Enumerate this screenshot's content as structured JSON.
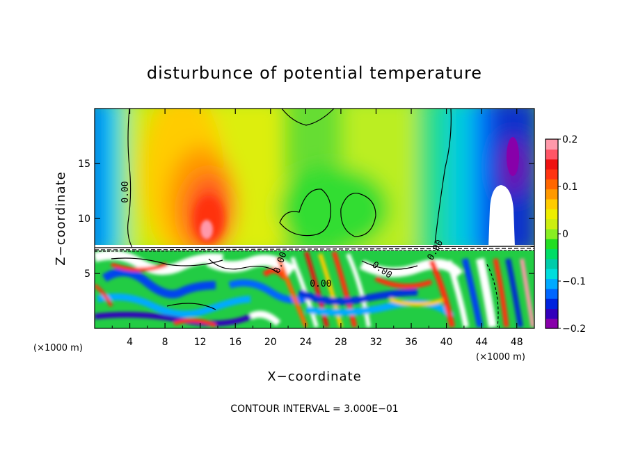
{
  "chart_data": {
    "type": "heatmap",
    "title": "disturbunce of potential temperature",
    "xlabel": "X−coordinate",
    "ylabel": "Z−coordinate",
    "x_unit_left": "(×1000 m)",
    "x_unit_right": "(×1000 m)",
    "xlim": [
      0,
      50
    ],
    "ylim": [
      0,
      20
    ],
    "x_ticks": [
      4,
      8,
      12,
      16,
      20,
      24,
      28,
      32,
      36,
      40,
      44,
      48
    ],
    "x_tick_labels": [
      "4",
      "8",
      "12",
      "16",
      "20",
      "24",
      "28",
      "32",
      "36",
      "40",
      "44",
      "48"
    ],
    "y_ticks": [
      5,
      10,
      15
    ],
    "y_tick_labels": [
      "5",
      "10",
      "15"
    ],
    "colorbar": {
      "range": [
        -0.2,
        0.2
      ],
      "ticks": [
        0.2,
        0.1,
        0,
        -0.1,
        -0.2
      ],
      "tick_labels": [
        "0.2",
        "0.1",
        "0",
        "−0.1",
        "−0.2"
      ],
      "colors": [
        "#8800aa",
        "#3300bb",
        "#0022dd",
        "#0066ff",
        "#00aaff",
        "#00dddd",
        "#00ccaa",
        "#00dd66",
        "#22dd22",
        "#88ee22",
        "#ccee11",
        "#eeee00",
        "#ffcc00",
        "#ff9900",
        "#ff6600",
        "#ff3311",
        "#ee1111",
        "#ff5566",
        "#ff99aa"
      ]
    },
    "contour_labels": [
      {
        "text": "0.00",
        "x": 3.8,
        "z": 12.4,
        "rotate": -90
      },
      {
        "text": "0.00",
        "x": 21.4,
        "z": 5.9,
        "rotate": -70
      },
      {
        "text": "0.00",
        "x": 25.7,
        "z": 3.8,
        "rotate": 0
      },
      {
        "text": "0.00",
        "x": 32.5,
        "z": 5.1,
        "rotate": 35
      },
      {
        "text": "0.00",
        "x": 39.0,
        "z": 7.0,
        "rotate": -60
      }
    ],
    "contour_interval_label": "CONTOUR INTERVAL = 3.000E−01"
  }
}
